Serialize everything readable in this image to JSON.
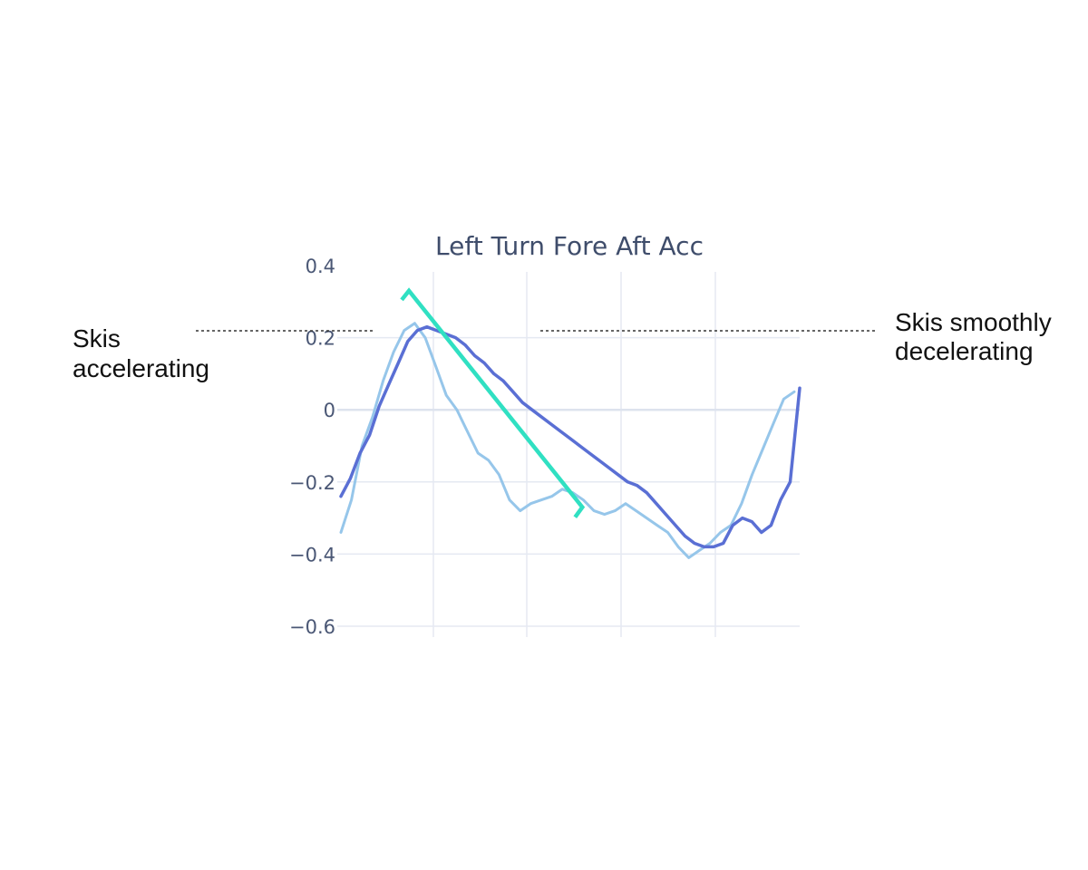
{
  "chart_data": {
    "type": "line",
    "title": "Left Turn Fore Aft Acc",
    "xlabel": "",
    "ylabel": "",
    "ylim": [
      -0.6,
      0.4
    ],
    "y_ticks": [
      {
        "value": 0.4,
        "label": "0.4"
      },
      {
        "value": 0.2,
        "label": "0.2"
      },
      {
        "value": 0,
        "label": "0"
      },
      {
        "value": -0.2,
        "label": "−0.2"
      },
      {
        "value": -0.4,
        "label": "−0.4"
      },
      {
        "value": -0.6,
        "label": "−0.6"
      }
    ],
    "x_tick_labels": [],
    "grid": true,
    "legend": "none",
    "colors": {
      "series_dark": "#5a6fd4",
      "series_light": "#96c6ea",
      "highlight": "#30e0c2",
      "grid": "#e5e9f2",
      "zero_line": "#dde3ee"
    },
    "series": [
      {
        "values": [
          -0.24,
          -0.19,
          -0.12,
          -0.07,
          0.01,
          0.07,
          0.13,
          0.19,
          0.22,
          0.23,
          0.22,
          0.21,
          0.2,
          0.18,
          0.15,
          0.13,
          0.1,
          0.08,
          0.05,
          0.02,
          0.0,
          -0.02,
          -0.04,
          -0.06,
          -0.08,
          -0.1,
          -0.12,
          -0.14,
          -0.16,
          -0.18,
          -0.2,
          -0.21,
          -0.23,
          -0.26,
          -0.29,
          -0.32,
          -0.35,
          -0.37,
          -0.38,
          -0.38,
          -0.37,
          -0.32,
          -0.3,
          -0.31,
          -0.34,
          -0.32,
          -0.25,
          -0.2,
          0.06
        ]
      },
      {
        "values": [
          -0.34,
          -0.25,
          -0.1,
          -0.02,
          0.08,
          0.16,
          0.22,
          0.24,
          0.2,
          0.12,
          0.04,
          0.0,
          -0.06,
          -0.12,
          -0.14,
          -0.18,
          -0.25,
          -0.28,
          -0.26,
          -0.25,
          -0.24,
          -0.22,
          -0.23,
          -0.25,
          -0.28,
          -0.29,
          -0.28,
          -0.26,
          -0.28,
          -0.3,
          -0.32,
          -0.34,
          -0.38,
          -0.41,
          -0.39,
          -0.37,
          -0.34,
          -0.32,
          -0.26,
          -0.18,
          -0.11,
          -0.04,
          0.03,
          0.05
        ]
      }
    ],
    "highlight_segment": {
      "start": {
        "x": 0.155,
        "y": 0.33
      },
      "end": {
        "x": 0.53,
        "y": -0.27
      }
    },
    "annotations": [
      {
        "lines": [
          "Skis",
          "accelerating"
        ]
      },
      {
        "lines": [
          "Skis smoothly",
          "decelerating"
        ]
      }
    ]
  }
}
